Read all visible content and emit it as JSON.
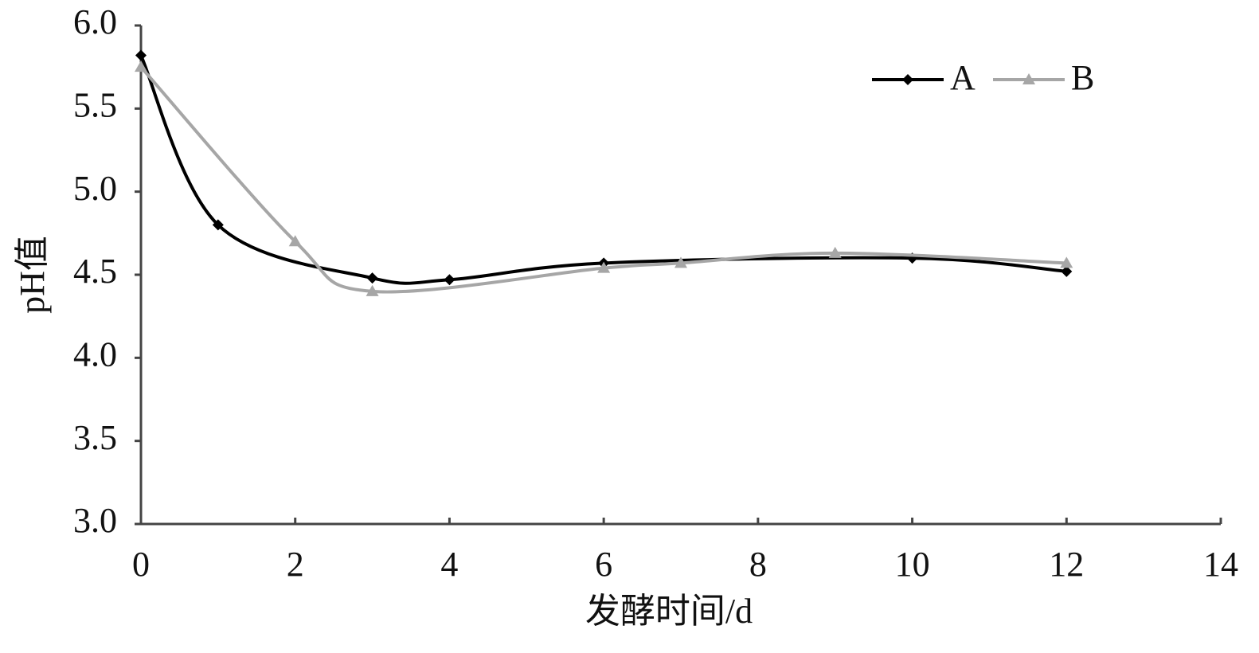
{
  "chart_data": {
    "type": "line",
    "xlabel": "发酵时间/d",
    "ylabel": "pH值",
    "xlim": [
      0,
      14
    ],
    "xticks": [
      0,
      2,
      4,
      6,
      8,
      10,
      12,
      14
    ],
    "ylim": [
      3,
      6
    ],
    "yticks": [
      {
        "value": 3,
        "label": "3.0"
      },
      {
        "value": 3.5,
        "label": "3.5"
      },
      {
        "value": 4,
        "label": "4.0"
      },
      {
        "value": 4.5,
        "label": "4.5"
      },
      {
        "value": 5,
        "label": "5.0"
      },
      {
        "value": 5.5,
        "label": "5.5"
      },
      {
        "value": 6,
        "label": "6.0"
      }
    ],
    "grid": false,
    "legend": "upper right",
    "series": [
      {
        "name": "A",
        "color": "#000000",
        "marker": "diamond",
        "x": [
          0,
          1,
          3,
          4,
          6,
          10,
          12
        ],
        "values": [
          5.82,
          4.8,
          4.48,
          4.47,
          4.57,
          4.6,
          4.52
        ]
      },
      {
        "name": "B",
        "color": "#a6a6a6",
        "marker": "triangle",
        "x": [
          0,
          2,
          3,
          6,
          7,
          9,
          12
        ],
        "values": [
          5.75,
          4.7,
          4.4,
          4.54,
          4.57,
          4.63,
          4.57
        ]
      }
    ]
  }
}
